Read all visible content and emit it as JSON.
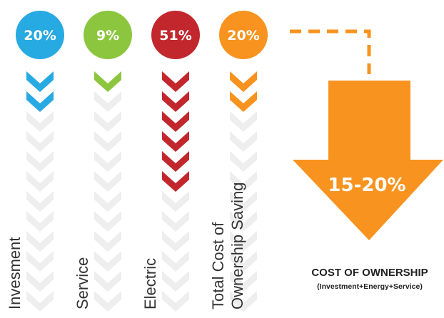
{
  "columns": [
    {
      "percent": "20%",
      "label": "Invesment",
      "label_lines": [
        "Invesment"
      ],
      "color": "#27a9e1",
      "colored_chevrons": 2
    },
    {
      "percent": "9%",
      "label": "Service",
      "label_lines": [
        "Service"
      ],
      "color": "#8cc63f",
      "colored_chevrons": 1
    },
    {
      "percent": "51%",
      "label": "Electric",
      "label_lines": [
        "Electric"
      ],
      "color": "#c1272d",
      "colored_chevrons": 6
    },
    {
      "percent": "20%",
      "label": "Total Cost of Ownership Saving",
      "label_lines": [
        "Total  Cost of",
        "Ownership Saving"
      ],
      "color": "#f7931e",
      "colored_chevrons": 2
    }
  ],
  "total_chevrons": 12,
  "inactive_chevron_color": "#eeeeee",
  "result": {
    "value": "15-20%",
    "color": "#f7931e",
    "title": "COST OF OWNERSHIP",
    "subtitle": "(Investment+Energy+Service)"
  }
}
